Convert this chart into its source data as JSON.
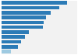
{
  "values": [
    6500,
    5700,
    4900,
    4400,
    4200,
    4100,
    2700,
    2300,
    1900,
    1600,
    900
  ],
  "bar_colors": [
    "#2c7bb6",
    "#2c7bb6",
    "#2c7bb6",
    "#2c7bb6",
    "#2c7bb6",
    "#2c7bb6",
    "#2c7bb6",
    "#2c7bb6",
    "#2c7bb6",
    "#2c7bb6",
    "#9ecae1"
  ],
  "background_color": "#ffffff",
  "plot_bg_color": "#f2f2f2",
  "xlim": [
    0,
    7500
  ],
  "bar_height": 0.75,
  "figsize": [
    1.0,
    0.71
  ],
  "dpi": 100
}
